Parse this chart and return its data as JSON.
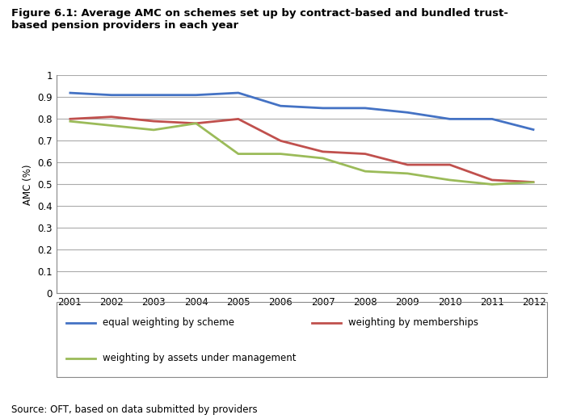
{
  "title": "Figure 6.1: Average AMC on schemes set up by contract-based and bundled trust-\nbased pension providers in each year",
  "source": "Source: OFT, based on data submitted by providers",
  "years": [
    2001,
    2002,
    2003,
    2004,
    2005,
    2006,
    2007,
    2008,
    2009,
    2010,
    2011,
    2012
  ],
  "series": [
    {
      "label": "equal weighting by scheme",
      "color": "#4472C4",
      "values": [
        0.92,
        0.91,
        0.91,
        0.91,
        0.92,
        0.86,
        0.85,
        0.85,
        0.83,
        0.8,
        0.8,
        0.75
      ]
    },
    {
      "label": "weighting by memberships",
      "color": "#C0504D",
      "values": [
        0.8,
        0.81,
        0.79,
        0.78,
        0.8,
        0.7,
        0.65,
        0.64,
        0.59,
        0.59,
        0.52,
        0.51
      ]
    },
    {
      "label": "weighting by assets under management",
      "color": "#9BBB59",
      "values": [
        0.79,
        0.77,
        0.75,
        0.78,
        0.64,
        0.64,
        0.62,
        0.56,
        0.55,
        0.52,
        0.5,
        0.51
      ]
    }
  ],
  "ylabel": "AMC (%)",
  "ylim": [
    0,
    1.0
  ],
  "yticks": [
    0,
    0.1,
    0.2,
    0.3,
    0.4,
    0.5,
    0.6,
    0.7,
    0.8,
    0.9,
    1
  ],
  "background_color": "#ffffff",
  "plot_background": "#ffffff",
  "grid_color": "#aaaaaa",
  "line_width": 2.0,
  "title_fontsize": 9.5,
  "axis_fontsize": 8.5,
  "legend_fontsize": 8.5,
  "source_fontsize": 8.5
}
